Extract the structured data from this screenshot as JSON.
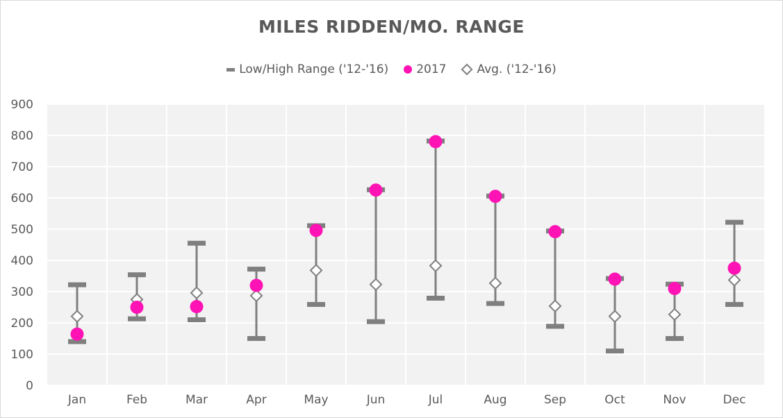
{
  "chart_data": {
    "type": "scatter",
    "title": "MILES RIDDEN/MO.  RANGE",
    "xlabel": "",
    "ylabel": "",
    "ylim": [
      0,
      900
    ],
    "yticks": [
      "0",
      "100",
      "200",
      "300",
      "400",
      "500",
      "600",
      "700",
      "800",
      "900"
    ],
    "grid": true,
    "legend_position": "top",
    "categories": [
      "Jan",
      "Feb",
      "Mar",
      "Apr",
      "May",
      "Jun",
      "Jul",
      "Aug",
      "Sep",
      "Oct",
      "Nov",
      "Dec"
    ],
    "series": [
      {
        "name": "Low/High Range ('12-'16)",
        "marker": "dash",
        "color": "#7f7f7f",
        "low": [
          140,
          213,
          210,
          150,
          259,
          204,
          279,
          262,
          189,
          110,
          150,
          259
        ],
        "high": [
          322,
          354,
          455,
          372,
          511,
          626,
          782,
          606,
          494,
          342,
          324,
          522
        ]
      },
      {
        "name": "2017",
        "marker": "circle",
        "color": "#ff13b4",
        "values": [
          164,
          250,
          252,
          320,
          496,
          625,
          780,
          605,
          492,
          340,
          310,
          375
        ]
      },
      {
        "name": "Avg. ('12-'16)",
        "marker": "diamond",
        "color": "#7f7f7f",
        "values": [
          221,
          275,
          296,
          287,
          368,
          323,
          383,
          327,
          254,
          221,
          227,
          337
        ]
      }
    ]
  }
}
